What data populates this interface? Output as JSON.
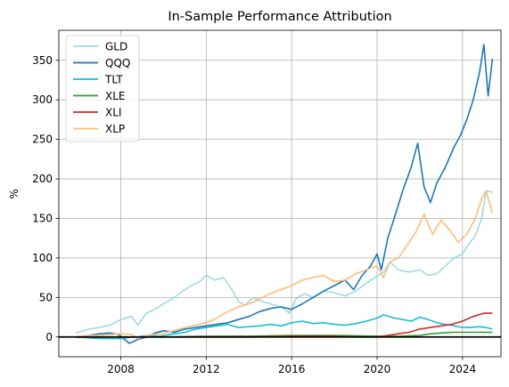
{
  "chart_data": {
    "type": "line",
    "title": "In-Sample Performance Attribution",
    "xlabel": "",
    "ylabel": "%",
    "xlim": [
      2005.1,
      2025.8
    ],
    "ylim": [
      -25,
      388
    ],
    "xticks": [
      2008,
      2012,
      2016,
      2020,
      2024
    ],
    "yticks": [
      0,
      50,
      100,
      150,
      200,
      250,
      300,
      350
    ],
    "grid": true,
    "legend_position": "top-left",
    "zero_line": true,
    "series": [
      {
        "name": "GLD",
        "color": "#9edae5",
        "x": [
          2005.9,
          2006.5,
          2007.0,
          2007.5,
          2008.0,
          2008.5,
          2008.8,
          2009.2,
          2009.6,
          2010.0,
          2010.5,
          2011.0,
          2011.3,
          2011.7,
          2012.0,
          2012.4,
          2012.8,
          2013.2,
          2013.5,
          2013.8,
          2014.2,
          2014.6,
          2015.0,
          2015.5,
          2015.9,
          2016.2,
          2016.6,
          2017.0,
          2017.5,
          2018.0,
          2018.5,
          2019.0,
          2019.5,
          2019.9,
          2020.3,
          2020.6,
          2021.0,
          2021.5,
          2022.0,
          2022.4,
          2022.8,
          2023.2,
          2023.6,
          2024.0,
          2024.3,
          2024.6,
          2024.9,
          2025.1,
          2025.4
        ],
        "y": [
          5,
          10,
          12,
          15,
          22,
          26,
          15,
          30,
          35,
          42,
          50,
          60,
          65,
          70,
          78,
          72,
          75,
          60,
          45,
          40,
          50,
          45,
          42,
          38,
          30,
          48,
          55,
          50,
          58,
          56,
          52,
          58,
          68,
          75,
          82,
          95,
          85,
          82,
          85,
          78,
          80,
          90,
          100,
          105,
          118,
          128,
          150,
          185,
          183
        ]
      },
      {
        "name": "QQQ",
        "color": "#1f77b4",
        "x": [
          2005.9,
          2006.5,
          2007.0,
          2007.5,
          2007.9,
          2008.4,
          2008.8,
          2009.2,
          2009.6,
          2010.0,
          2010.5,
          2011.0,
          2011.5,
          2012.0,
          2012.5,
          2013.0,
          2013.5,
          2014.0,
          2014.5,
          2015.0,
          2015.5,
          2016.0,
          2016.5,
          2017.0,
          2017.5,
          2018.0,
          2018.5,
          2018.9,
          2019.3,
          2019.7,
          2020.0,
          2020.2,
          2020.5,
          2020.8,
          2021.2,
          2021.6,
          2021.9,
          2022.2,
          2022.5,
          2022.8,
          2023.2,
          2023.6,
          2023.9,
          2024.2,
          2024.5,
          2024.8,
          2025.0,
          2025.2,
          2025.4
        ],
        "y": [
          0,
          2,
          4,
          5,
          3,
          -8,
          -3,
          0,
          5,
          8,
          6,
          10,
          12,
          14,
          16,
          18,
          22,
          26,
          32,
          36,
          38,
          35,
          42,
          50,
          58,
          65,
          72,
          60,
          78,
          90,
          105,
          85,
          125,
          150,
          185,
          215,
          245,
          190,
          170,
          195,
          215,
          240,
          255,
          275,
          300,
          335,
          370,
          305,
          352
        ]
      },
      {
        "name": "TLT",
        "color": "#17becf",
        "x": [
          2005.9,
          2006.5,
          2007.0,
          2007.5,
          2008.0,
          2008.5,
          2008.8,
          2009.2,
          2009.8,
          2010.5,
          2011.0,
          2011.5,
          2012.0,
          2012.5,
          2013.0,
          2013.5,
          2014.0,
          2014.5,
          2015.0,
          2015.5,
          2016.0,
          2016.5,
          2017.0,
          2017.5,
          2018.0,
          2018.5,
          2019.0,
          2019.5,
          2020.0,
          2020.3,
          2020.8,
          2021.2,
          2021.6,
          2022.0,
          2022.4,
          2022.8,
          2023.2,
          2023.6,
          2024.0,
          2024.4,
          2024.8,
          2025.1,
          2025.4
        ],
        "y": [
          0,
          -1,
          -2,
          -2,
          -2,
          0,
          0,
          2,
          1,
          4,
          6,
          10,
          12,
          14,
          16,
          12,
          13,
          14,
          16,
          14,
          18,
          20,
          17,
          18,
          16,
          15,
          17,
          20,
          24,
          28,
          24,
          22,
          20,
          25,
          22,
          18,
          16,
          14,
          12,
          12,
          13,
          12,
          10
        ]
      },
      {
        "name": "XLE",
        "color": "#2ca02c",
        "x": [
          2005.9,
          2008.0,
          2010.0,
          2012.0,
          2014.0,
          2016.0,
          2018.0,
          2020.0,
          2021.0,
          2022.0,
          2022.5,
          2023.0,
          2023.5,
          2024.0,
          2024.5,
          2025.0,
          2025.4
        ],
        "y": [
          0,
          0,
          0,
          1,
          1,
          2,
          2,
          1,
          1,
          2,
          4,
          5,
          6,
          6,
          6,
          6,
          6
        ]
      },
      {
        "name": "XLI",
        "color": "#d62728",
        "x": [
          2005.9,
          2008.0,
          2010.0,
          2012.0,
          2014.0,
          2016.0,
          2017.0,
          2018.0,
          2019.0,
          2020.0,
          2020.5,
          2021.0,
          2021.5,
          2022.0,
          2022.5,
          2023.0,
          2023.5,
          2024.0,
          2024.5,
          2025.0,
          2025.4
        ],
        "y": [
          0,
          0,
          0,
          0,
          0,
          1,
          1,
          1,
          0,
          0,
          2,
          4,
          6,
          10,
          12,
          14,
          16,
          20,
          26,
          30,
          30
        ]
      },
      {
        "name": "XLP",
        "color": "#ffbb78",
        "x": [
          2005.9,
          2006.5,
          2007.0,
          2007.5,
          2008.0,
          2008.5,
          2008.8,
          2009.2,
          2009.8,
          2010.5,
          2011.0,
          2011.5,
          2012.0,
          2012.5,
          2013.0,
          2013.5,
          2014.0,
          2014.5,
          2015.0,
          2015.5,
          2016.0,
          2016.5,
          2017.0,
          2017.5,
          2018.0,
          2018.5,
          2019.0,
          2019.5,
          2020.0,
          2020.3,
          2020.6,
          2021.0,
          2021.5,
          2021.8,
          2022.2,
          2022.6,
          2023.0,
          2023.4,
          2023.8,
          2024.2,
          2024.6,
          2024.9,
          2025.1,
          2025.4
        ],
        "y": [
          0,
          2,
          2,
          3,
          4,
          3,
          -2,
          2,
          4,
          8,
          12,
          15,
          18,
          24,
          32,
          38,
          42,
          48,
          55,
          60,
          65,
          72,
          75,
          78,
          70,
          72,
          80,
          85,
          90,
          75,
          95,
          100,
          120,
          132,
          155,
          130,
          148,
          135,
          120,
          130,
          150,
          175,
          185,
          157
        ]
      }
    ]
  }
}
